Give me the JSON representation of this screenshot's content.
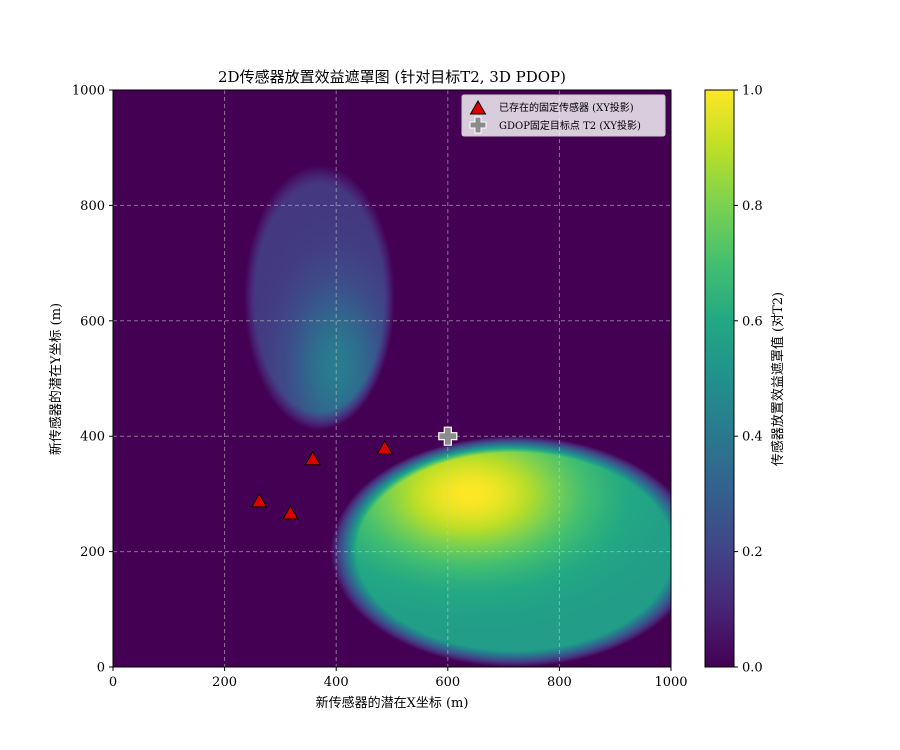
{
  "chart_data": {
    "type": "heatmap",
    "title": "2D传感器放置效益遮罩图 (针对目标T2, 3D PDOP)",
    "xlabel": "新传感器的潜在X坐标 (m)",
    "ylabel": "新传感器的潜在Y坐标 (m)",
    "xlim": [
      0,
      1000
    ],
    "ylim": [
      0,
      1000
    ],
    "x_ticks": [
      0,
      200,
      400,
      600,
      800,
      1000
    ],
    "y_ticks": [
      0,
      200,
      400,
      600,
      800,
      1000
    ],
    "x_tick_labels": [
      "0",
      "200",
      "400",
      "600",
      "800",
      "1000"
    ],
    "y_tick_labels": [
      "0",
      "200",
      "400",
      "600",
      "800",
      "1000"
    ],
    "grid": true,
    "colormap": "viridis",
    "colorbar": {
      "label": "传感器放置效益遮罩值 (对T2)",
      "range": [
        0.0,
        1.0
      ],
      "ticks": [
        0.0,
        0.2,
        0.4,
        0.6,
        0.8,
        1.0
      ],
      "tick_labels": [
        "0.0",
        "0.2",
        "0.4",
        "0.6",
        "0.8",
        "1.0"
      ]
    },
    "legend": {
      "position": "top-right",
      "entries": [
        {
          "label": "已存在的固定传感器 (XY投影)",
          "marker": "triangle",
          "color": "#dd0000"
        },
        {
          "label": "GDOP固定目标点 T2 (XY投影)",
          "marker": "plus",
          "color": "#8c8c8c"
        }
      ]
    },
    "series": [
      {
        "name": "已存在的固定传感器 (XY投影)",
        "marker": "triangle",
        "points": [
          {
            "x": 262,
            "y": 288
          },
          {
            "x": 318,
            "y": 267
          },
          {
            "x": 358,
            "y": 361
          },
          {
            "x": 487,
            "y": 380
          }
        ]
      },
      {
        "name": "GDOP固定目标点 T2 (XY投影)",
        "marker": "plus",
        "points": [
          {
            "x": 600,
            "y": 400
          }
        ]
      }
    ],
    "regions": [
      {
        "description": "upper-left lobe",
        "center": [
          370,
          640
        ],
        "radii": [
          135,
          230
        ],
        "peak_xy": [
          400,
          520
        ],
        "peak_value": 0.42,
        "base_value": 0.16
      },
      {
        "description": "lower-right lobe",
        "center": [
          720,
          200
        ],
        "radii": [
          330,
          200
        ],
        "peak_xy": [
          640,
          300
        ],
        "peak_value": 1.0,
        "base_value": 0.55
      }
    ],
    "background_value": 0.0
  }
}
